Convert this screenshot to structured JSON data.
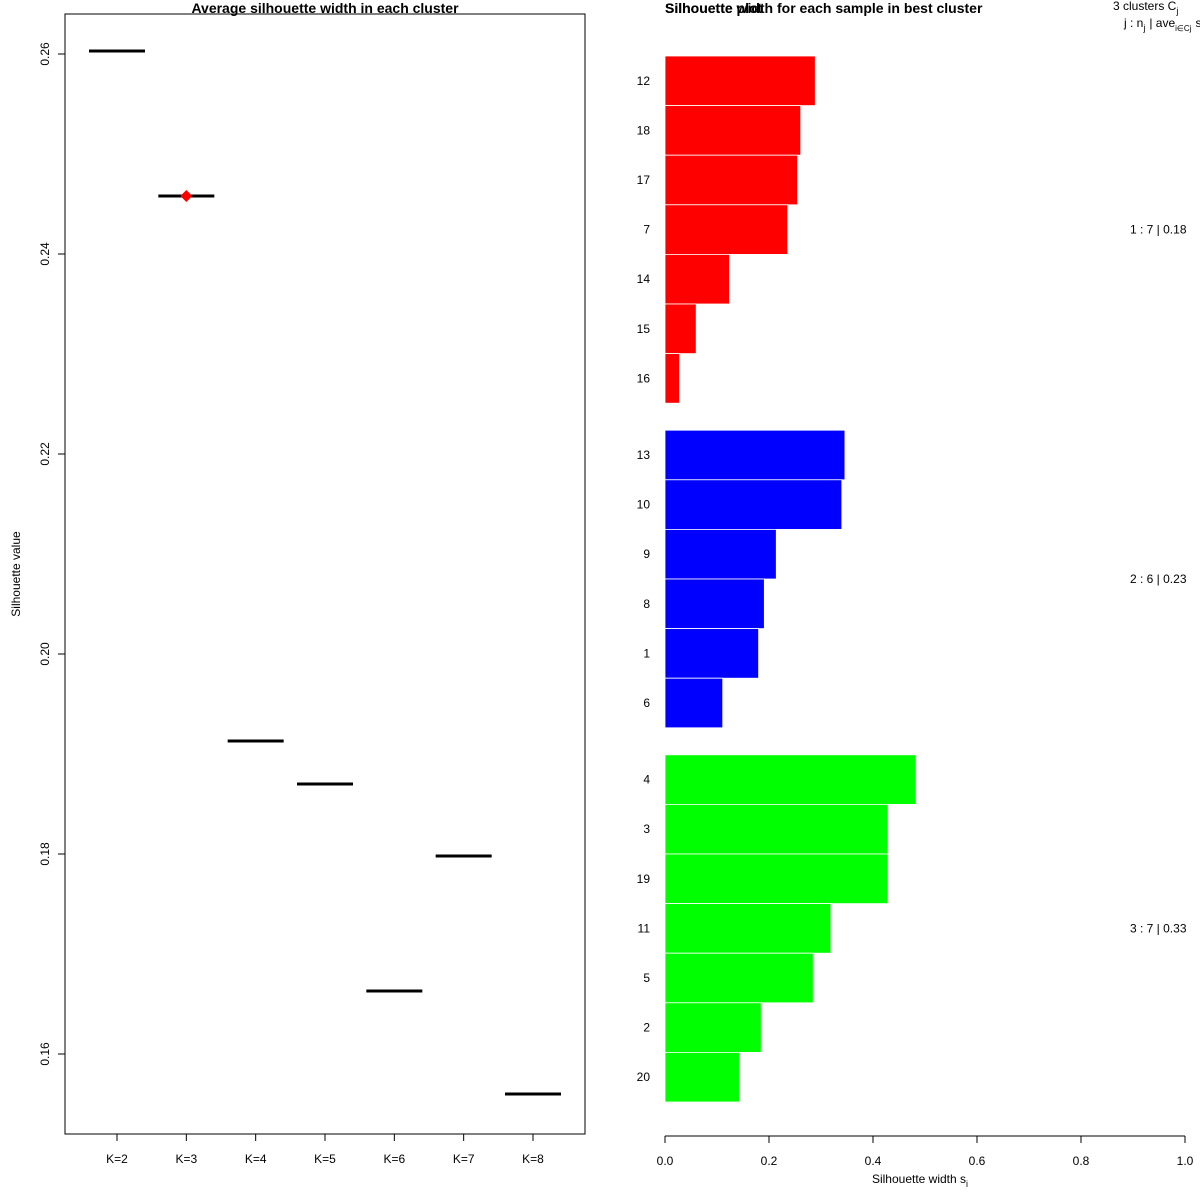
{
  "chart_data": [
    {
      "type": "scatter",
      "title": "Average silhouette width in each cluster",
      "xlabel": "",
      "ylabel": "Silhouette value",
      "categories": [
        "K=2",
        "K=3",
        "K=4",
        "K=5",
        "K=6",
        "K=7",
        "K=8"
      ],
      "values": [
        0.2603,
        0.2458,
        0.1913,
        0.187,
        0.1663,
        0.1798,
        0.156
      ],
      "best_index": 1,
      "best_label": "K=3",
      "ylim": [
        0.152,
        0.264
      ],
      "yticks": [
        0.16,
        0.18,
        0.2,
        0.22,
        0.24,
        0.26
      ],
      "ytick_labels": [
        "0.16",
        "0.18",
        "0.20",
        "0.22",
        "0.24",
        "0.26"
      ],
      "marker_color": "#000000",
      "best_marker_color": "#ff0000"
    },
    {
      "type": "bar",
      "orientation": "horizontal",
      "title": "Silhouette width for each sample in best cluster",
      "overlay_title": "Silhouette plot",
      "xlabel": "Silhouette width s",
      "xlabel_sub": "i",
      "xlim": [
        0,
        1
      ],
      "xticks": [
        0.0,
        0.2,
        0.4,
        0.6,
        0.8,
        1.0
      ],
      "xtick_labels": [
        "0.0",
        "0.2",
        "0.4",
        "0.6",
        "0.8",
        "1.0"
      ],
      "legend": {
        "line1_text": "3  clusters  C",
        "line1_sub": "j",
        "line2_a": "j :  n",
        "line2_a_sub": "j",
        "line2_b": "| ave",
        "line2_b_sub": "i∈Cj",
        "line2_c": "s"
      },
      "clusters": [
        {
          "id": 1,
          "color": "#ff0000",
          "summary": "1 :  7  |  0.18",
          "samples": [
            {
              "label": "12",
              "value": 0.289
            },
            {
              "label": "18",
              "value": 0.261
            },
            {
              "label": "17",
              "value": 0.255
            },
            {
              "label": "7",
              "value": 0.236
            },
            {
              "label": "14",
              "value": 0.124
            },
            {
              "label": "15",
              "value": 0.06
            },
            {
              "label": "16",
              "value": 0.028
            }
          ]
        },
        {
          "id": 2,
          "color": "#0000ff",
          "summary": "2 :  6  |  0.23",
          "samples": [
            {
              "label": "13",
              "value": 0.346
            },
            {
              "label": "10",
              "value": 0.34
            },
            {
              "label": "9",
              "value": 0.214
            },
            {
              "label": "8",
              "value": 0.191
            },
            {
              "label": "1",
              "value": 0.18
            },
            {
              "label": "6",
              "value": 0.111
            }
          ]
        },
        {
          "id": 3,
          "color": "#00ff00",
          "summary": "3 :  7  |  0.33",
          "samples": [
            {
              "label": "4",
              "value": 0.483
            },
            {
              "label": "3",
              "value": 0.429
            },
            {
              "label": "19",
              "value": 0.429
            },
            {
              "label": "11",
              "value": 0.319
            },
            {
              "label": "5",
              "value": 0.285
            },
            {
              "label": "2",
              "value": 0.185
            },
            {
              "label": "20",
              "value": 0.143
            }
          ]
        }
      ]
    }
  ]
}
